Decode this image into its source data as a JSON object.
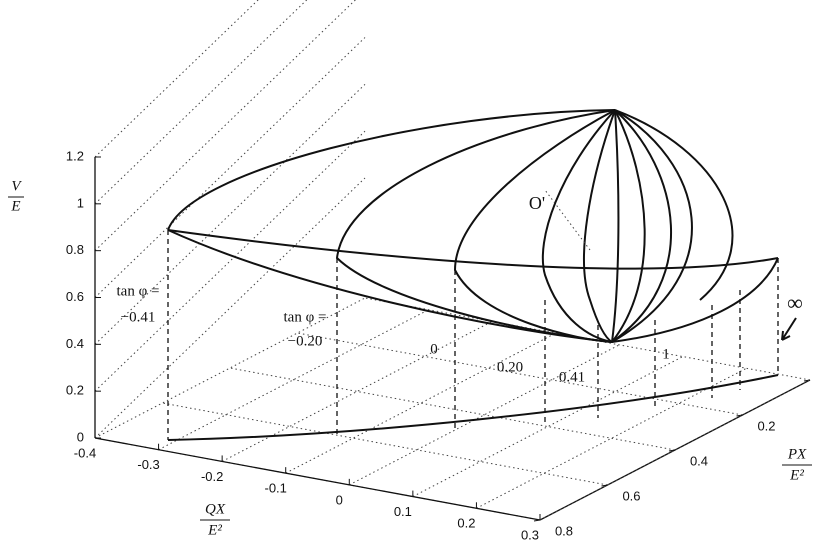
{
  "chart_data": {
    "type": "surface3d",
    "z_label": {
      "numerator": "V",
      "denominator": "E"
    },
    "x_label": {
      "numerator": "QX",
      "denominator": "E²"
    },
    "y_label": {
      "numerator": "PX",
      "denominator": "E²"
    },
    "zlim": [
      0,
      1.2
    ],
    "zticks": [
      0,
      0.2,
      0.4,
      0.6,
      0.8,
      1,
      1.2
    ],
    "xlim": [
      -0.4,
      0.3
    ],
    "xticks": [
      -0.4,
      -0.3,
      -0.2,
      -0.1,
      0,
      0.1,
      0.2,
      0.3
    ],
    "ylim": [
      0,
      0.8
    ],
    "yticks": [
      0,
      0.2,
      0.4,
      0.6,
      0.8
    ],
    "grid": true,
    "annotations": [
      "tan φ =",
      "−0.41",
      "tan φ =",
      "−0.20",
      "0",
      "0.20",
      "0.41",
      "1",
      "∞",
      "O'"
    ]
  }
}
